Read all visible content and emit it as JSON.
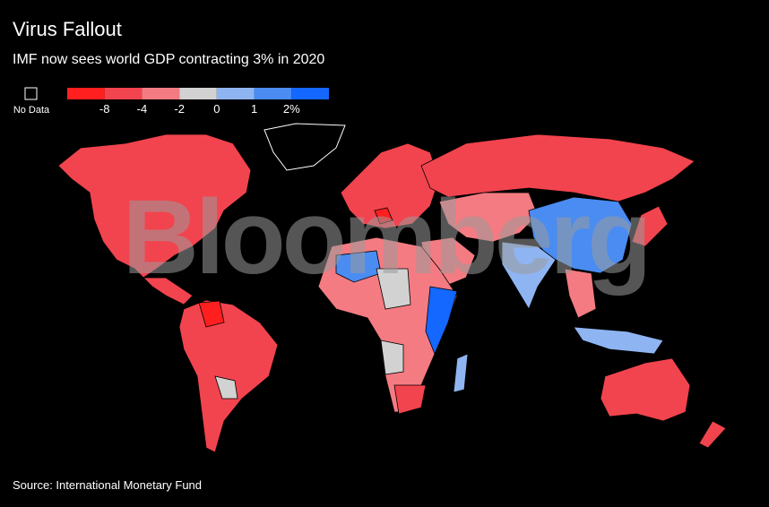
{
  "header": {
    "title": "Virus Fallout",
    "subtitle": "IMF now sees world GDP contracting 3% in 2020"
  },
  "legend": {
    "no_data": "No Data",
    "colors": [
      "#ff1f1f",
      "#f2444e",
      "#f47b82",
      "#d2d2d2",
      "#8fb4f2",
      "#4a8cf2",
      "#1467ff"
    ],
    "labels": [
      "-8",
      "-4",
      "-2",
      "0",
      "1",
      "2%"
    ]
  },
  "watermark": "Bloomberg",
  "footer": {
    "source": "Source: International Monetary Fund"
  }
}
